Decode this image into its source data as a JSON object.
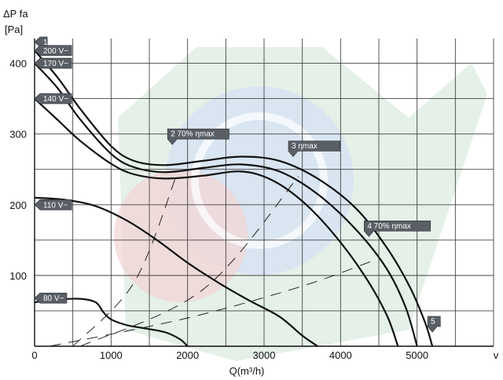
{
  "chart_data": {
    "type": "line",
    "ylabel_lines": [
      "ΔP fa",
      "[Pa]"
    ],
    "xlabel": "Q(m³/h)",
    "x_end_label": "v",
    "xlim": [
      0,
      6000
    ],
    "ylim": [
      0,
      435
    ],
    "x_ticks": [
      0,
      1000,
      2000,
      3000,
      4000,
      5000
    ],
    "y_ticks": [
      100,
      200,
      300,
      400
    ],
    "grid": true,
    "colors": {
      "curve": "#111111",
      "tag": "#5a5f66",
      "grid": "#444444",
      "watermark_green": "#cfe3d6",
      "watermark_blue": "#d6e2f2",
      "watermark_red": "#f2d6d6"
    },
    "series": [
      {
        "name": "200 V~",
        "points": [
          [
            0,
            418
          ],
          [
            300,
            380
          ],
          [
            600,
            335
          ],
          [
            1000,
            283
          ],
          [
            1300,
            262
          ],
          [
            1700,
            256
          ],
          [
            2200,
            262
          ],
          [
            2700,
            268
          ],
          [
            3200,
            262
          ],
          [
            3700,
            237
          ],
          [
            4200,
            195
          ],
          [
            4600,
            140
          ],
          [
            4900,
            85
          ],
          [
            5100,
            35
          ],
          [
            5200,
            0
          ]
        ]
      },
      {
        "name": "170 V~",
        "points": [
          [
            0,
            400
          ],
          [
            300,
            365
          ],
          [
            600,
            320
          ],
          [
            1000,
            272
          ],
          [
            1300,
            253
          ],
          [
            1700,
            246
          ],
          [
            2200,
            252
          ],
          [
            2700,
            257
          ],
          [
            3200,
            247
          ],
          [
            3700,
            215
          ],
          [
            4200,
            165
          ],
          [
            4600,
            110
          ],
          [
            4850,
            55
          ],
          [
            5000,
            0
          ]
        ]
      },
      {
        "name": "140 V~",
        "points": [
          [
            0,
            350
          ],
          [
            300,
            320
          ],
          [
            600,
            290
          ],
          [
            1000,
            258
          ],
          [
            1300,
            243
          ],
          [
            1700,
            237
          ],
          [
            2200,
            241
          ],
          [
            2700,
            247
          ],
          [
            3100,
            235
          ],
          [
            3500,
            205
          ],
          [
            3900,
            160
          ],
          [
            4300,
            102
          ],
          [
            4600,
            45
          ],
          [
            4750,
            0
          ]
        ]
      },
      {
        "name": "110 V~",
        "points": [
          [
            0,
            210
          ],
          [
            400,
            207
          ],
          [
            800,
            198
          ],
          [
            1200,
            178
          ],
          [
            1600,
            150
          ],
          [
            2000,
            118
          ],
          [
            2400,
            90
          ],
          [
            2800,
            65
          ],
          [
            3200,
            42
          ],
          [
            3500,
            15
          ],
          [
            3700,
            0
          ]
        ]
      },
      {
        "name": "80 V~",
        "points": [
          [
            0,
            62
          ],
          [
            300,
            66
          ],
          [
            600,
            67
          ],
          [
            800,
            62
          ],
          [
            900,
            48
          ],
          [
            1000,
            38
          ],
          [
            1200,
            30
          ],
          [
            1400,
            26
          ],
          [
            1700,
            20
          ],
          [
            1900,
            10
          ],
          [
            2000,
            0
          ]
        ]
      }
    ],
    "efficiency_lines": [
      {
        "label": "70% ηmax",
        "points": [
          [
            500,
            0
          ],
          [
            1300,
            90
          ],
          [
            1850,
            240
          ]
        ]
      },
      {
        "label": "ηmax",
        "points": [
          [
            600,
            0
          ],
          [
            2200,
            80
          ],
          [
            3450,
            240
          ]
        ]
      },
      {
        "label": "70% ηmax",
        "points": [
          [
            200,
            0
          ],
          [
            2000,
            40
          ],
          [
            3500,
            85
          ],
          [
            4400,
            120
          ]
        ]
      }
    ],
    "tags": [
      {
        "text": "1",
        "x": 0,
        "y": 430
      },
      {
        "text": "200 V~",
        "x": 0,
        "y": 418
      },
      {
        "text": "170 V~",
        "x": 0,
        "y": 400
      },
      {
        "text": "140 V~",
        "x": 0,
        "y": 350
      },
      {
        "text": "2  70% ηmax",
        "x": 1800,
        "y": 285
      },
      {
        "text": "3    ηmax",
        "x": 3380,
        "y": 268
      },
      {
        "text": "110 V~",
        "x": 0,
        "y": 200
      },
      {
        "text": "4   70% ηmax",
        "x": 4370,
        "y": 155
      },
      {
        "text": "80 V~",
        "x": 0,
        "y": 68
      },
      {
        "text": "5",
        "x": 5200,
        "y": 20
      }
    ]
  }
}
